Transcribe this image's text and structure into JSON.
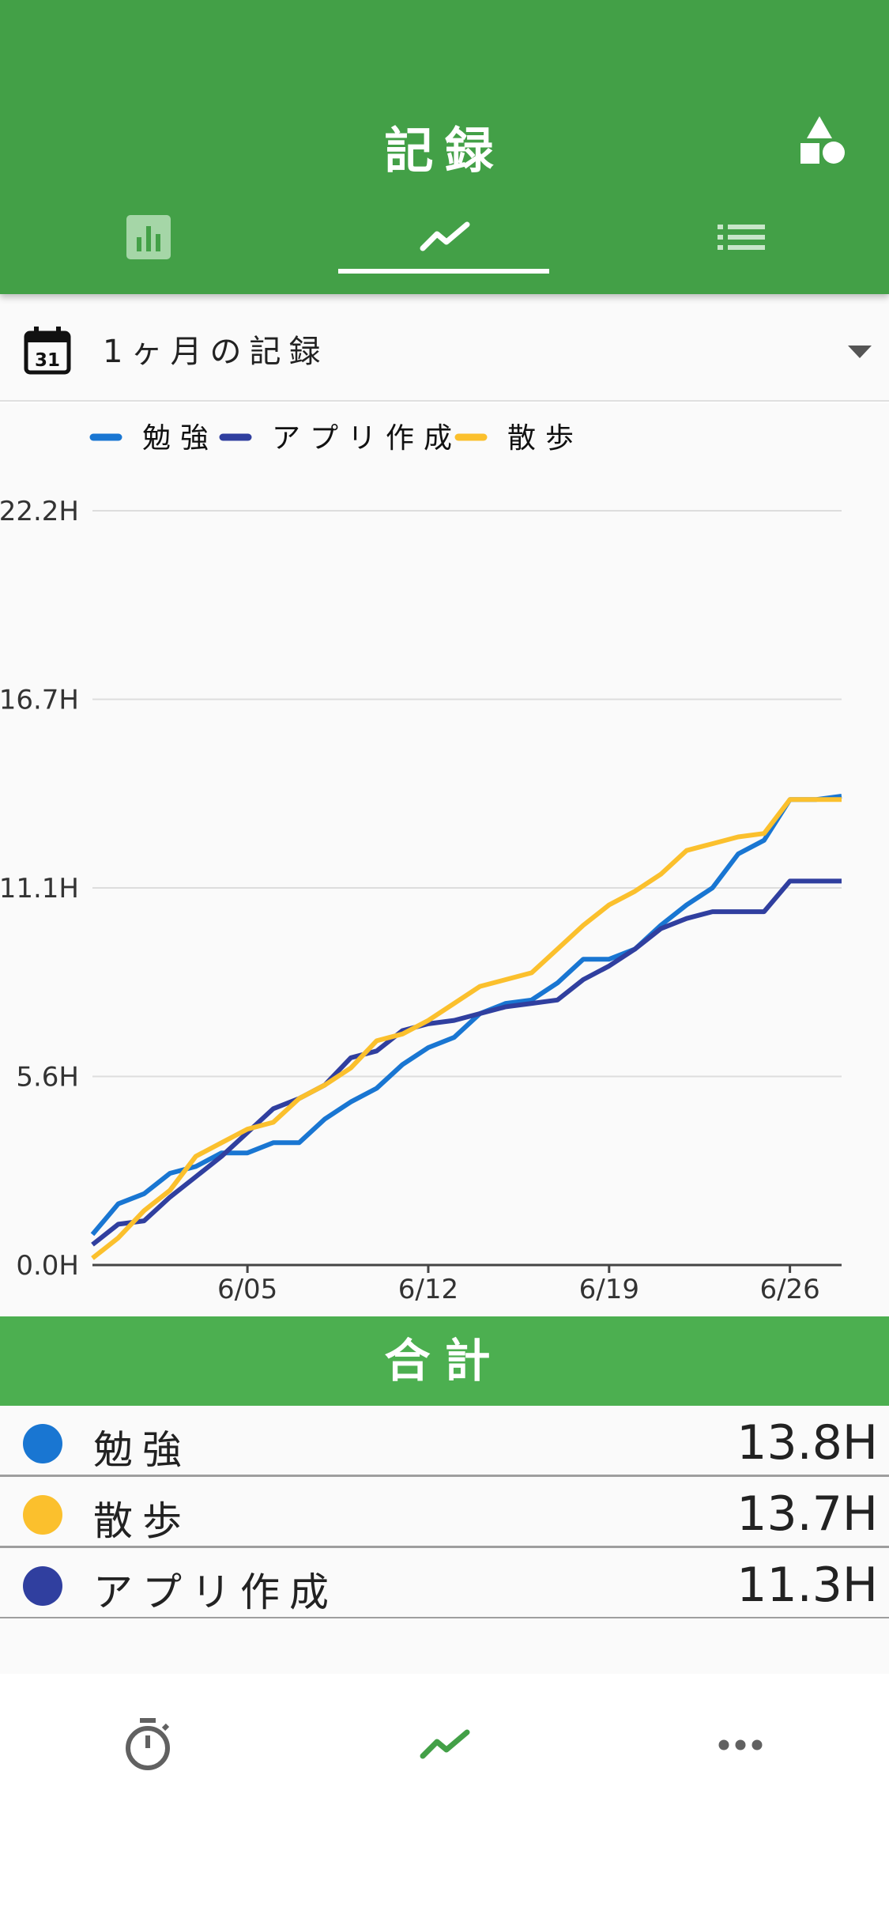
{
  "header": {
    "title": "記録",
    "tabs": [
      {
        "name": "bar-chart-icon",
        "active": false
      },
      {
        "name": "line-chart-icon",
        "active": true
      },
      {
        "name": "list-icon",
        "active": false
      }
    ],
    "colors": {
      "primary": "#43a047",
      "totals": "#4caf50"
    }
  },
  "period": {
    "calendar_day": "31",
    "label": "1ヶ月の記録"
  },
  "chart_data": {
    "type": "line",
    "x_ticks": [
      "6/05",
      "6/12",
      "6/19",
      "6/26"
    ],
    "y_ticks": [
      "0.0H",
      "5.6H",
      "11.1H",
      "16.7H",
      "22.2H"
    ],
    "ylim": [
      0,
      22.2
    ],
    "x": [
      "5/30",
      "5/31",
      "6/01",
      "6/02",
      "6/03",
      "6/04",
      "6/05",
      "6/06",
      "6/07",
      "6/08",
      "6/09",
      "6/10",
      "6/11",
      "6/12",
      "6/13",
      "6/14",
      "6/15",
      "6/16",
      "6/17",
      "6/18",
      "6/19",
      "6/20",
      "6/21",
      "6/22",
      "6/23",
      "6/24",
      "6/25",
      "6/26",
      "6/27",
      "6/28"
    ],
    "series": [
      {
        "name": "勉強",
        "color": "#1976d2",
        "values": [
          0.9,
          1.8,
          2.1,
          2.7,
          2.9,
          3.3,
          3.3,
          3.6,
          3.6,
          4.3,
          4.8,
          5.2,
          5.9,
          6.4,
          6.7,
          7.4,
          7.7,
          7.8,
          8.3,
          9.0,
          9.0,
          9.3,
          10.0,
          10.6,
          11.1,
          12.1,
          12.5,
          13.7,
          13.7,
          13.8
        ]
      },
      {
        "name": "アプリ作成",
        "color": "#303f9f",
        "values": [
          0.6,
          1.2,
          1.3,
          2.0,
          2.6,
          3.2,
          3.9,
          4.6,
          4.9,
          5.3,
          6.1,
          6.3,
          6.9,
          7.1,
          7.2,
          7.4,
          7.6,
          7.7,
          7.8,
          8.4,
          8.8,
          9.3,
          9.9,
          10.2,
          10.4,
          10.4,
          10.4,
          11.3,
          11.3,
          11.3
        ]
      },
      {
        "name": "散歩",
        "color": "#fbc02d",
        "values": [
          0.2,
          0.8,
          1.6,
          2.2,
          3.2,
          3.6,
          4.0,
          4.2,
          4.9,
          5.3,
          5.8,
          6.6,
          6.8,
          7.2,
          7.7,
          8.2,
          8.4,
          8.6,
          9.3,
          10.0,
          10.6,
          11.0,
          11.5,
          12.2,
          12.4,
          12.6,
          12.7,
          13.7,
          13.7,
          13.7
        ]
      }
    ]
  },
  "totals": {
    "header": "合計",
    "rows": [
      {
        "label": "勉強",
        "value": "13.8H",
        "color": "#1976d2"
      },
      {
        "label": "散歩",
        "value": "13.7H",
        "color": "#fbc02d"
      },
      {
        "label": "アプリ作成",
        "value": "11.3H",
        "color": "#303f9f"
      }
    ]
  },
  "bottom_nav": [
    {
      "name": "timer-icon",
      "active": false
    },
    {
      "name": "line-chart-icon",
      "active": true
    },
    {
      "name": "more-icon",
      "active": false
    }
  ]
}
